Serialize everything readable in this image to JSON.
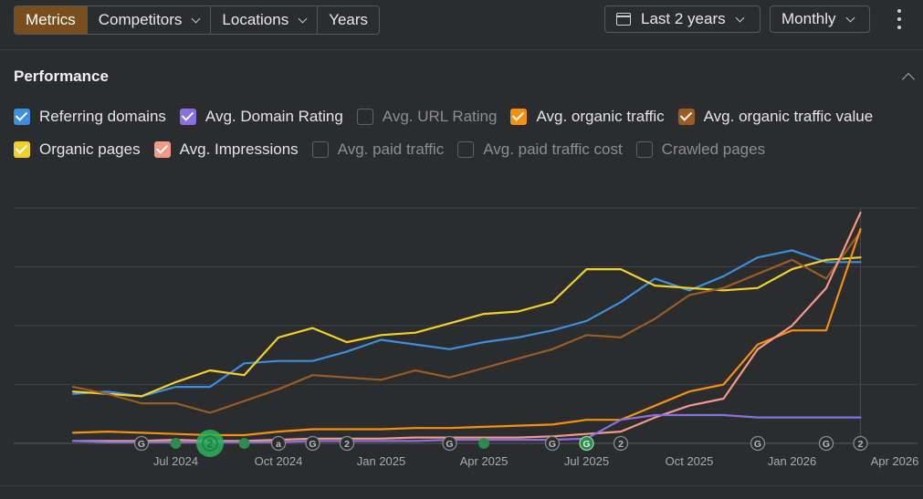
{
  "toolbar": {
    "tabs": [
      {
        "label": "Metrics",
        "active": true,
        "dropdown": false
      },
      {
        "label": "Competitors",
        "active": false,
        "dropdown": true
      },
      {
        "label": "Locations",
        "active": false,
        "dropdown": true
      },
      {
        "label": "Years",
        "active": false,
        "dropdown": false
      }
    ],
    "date_range": "Last 2 years",
    "interval": "Monthly",
    "menu_icon": "kebab-icon",
    "accent": "#7a4d1f"
  },
  "section": {
    "title": "Performance"
  },
  "legend": [
    [
      {
        "label": "Referring domains",
        "checked": true,
        "color": "#3b8fdd"
      },
      {
        "label": "Avg. Domain Rating",
        "checked": true,
        "color": "#8a6fe0"
      },
      {
        "label": "Avg. URL Rating",
        "checked": false,
        "color": ""
      },
      {
        "label": "Avg. organic traffic",
        "checked": true,
        "color": "#f5900f"
      },
      {
        "label": "Avg. organic traffic value",
        "checked": true,
        "color": "#9a5c22"
      }
    ],
    [
      {
        "label": "Organic pages",
        "checked": true,
        "color": "#f3d12a"
      },
      {
        "label": "Avg. Impressions",
        "checked": true,
        "color": "#f39a86"
      },
      {
        "label": "Avg. paid traffic",
        "checked": false,
        "color": ""
      },
      {
        "label": "Avg. paid traffic cost",
        "checked": false,
        "color": ""
      },
      {
        "label": "Crawled pages",
        "checked": false,
        "color": ""
      }
    ]
  ],
  "chart_data": {
    "type": "line",
    "x": [
      "2024-04",
      "2024-05",
      "2024-06",
      "2024-07",
      "2024-08",
      "2024-09",
      "2024-10",
      "2024-11",
      "2024-12",
      "2025-01",
      "2025-02",
      "2025-03",
      "2025-04",
      "2025-05",
      "2025-06",
      "2025-07",
      "2025-08",
      "2025-09",
      "2025-10",
      "2025-11",
      "2025-12",
      "2026-01",
      "2026-02",
      "2026-03",
      "2026-04"
    ],
    "x_tick_labels": [
      "Jul 2024",
      "Oct 2024",
      "Jan 2025",
      "Apr 2025",
      "Jul 2025",
      "Oct 2025",
      "Jan 2026",
      "Apr 2026"
    ],
    "x_tick_months": [
      "2024-07",
      "2024-10",
      "2025-01",
      "2025-04",
      "2025-07",
      "2025-10",
      "2026-01",
      "2026-04"
    ],
    "y_scale": "relative (no y-axis labels shown); values as % of chart height",
    "ylim": [
      0,
      100
    ],
    "grid": "horizontal",
    "series": [
      {
        "name": "Referring domains",
        "color": "#3b8fdd",
        "values": [
          21,
          22,
          20,
          24,
          24,
          34,
          35,
          35,
          39,
          44,
          42,
          40,
          43,
          45,
          48,
          52,
          60,
          70,
          65,
          71,
          79,
          82,
          77,
          77,
          null
        ]
      },
      {
        "name": "Organic pages",
        "color": "#f3d12a",
        "values": [
          22,
          21,
          20,
          26,
          31,
          29,
          45,
          49,
          43,
          46,
          47,
          51,
          55,
          56,
          60,
          74,
          74,
          67,
          66,
          65,
          66,
          74,
          78,
          79,
          null
        ]
      },
      {
        "name": "Avg. organic traffic value",
        "color": "#9a5c22",
        "values": [
          24,
          21,
          17,
          17,
          13,
          18,
          23,
          29,
          28,
          27,
          31,
          28,
          32,
          36,
          40,
          46,
          45,
          53,
          63,
          66,
          72,
          78,
          70,
          90,
          null
        ]
      },
      {
        "name": "Avg. organic traffic",
        "color": "#f5900f",
        "values": [
          4.5,
          5,
          4.5,
          4,
          3.5,
          3.5,
          5,
          6,
          6,
          6,
          6.5,
          6.5,
          7,
          7.5,
          8,
          10,
          10,
          16,
          22,
          25,
          42,
          48,
          48,
          91,
          null
        ]
      },
      {
        "name": "Avg. Impressions",
        "color": "#f39a86",
        "values": [
          1,
          1,
          1,
          1.5,
          1,
          1,
          1.5,
          2,
          2,
          2,
          2.5,
          2.5,
          2.5,
          2.5,
          3,
          4,
          5,
          11,
          16,
          19,
          40,
          50,
          66,
          98,
          null
        ]
      },
      {
        "name": "Avg. Domain Rating",
        "color": "#8a6fe0",
        "values": [
          1,
          0.5,
          0.5,
          0.5,
          0.5,
          0.5,
          0.5,
          1,
          1,
          1,
          1,
          1.5,
          1.5,
          1.5,
          1.5,
          2,
          10,
          12,
          12,
          12,
          11,
          11,
          11,
          11,
          null
        ]
      }
    ],
    "annotations": [
      {
        "month": "2024-06",
        "label": "G",
        "kind": "update"
      },
      {
        "month": "2024-07",
        "label": "",
        "kind": "event"
      },
      {
        "month": "2024-08",
        "label": "2",
        "kind": "event-large"
      },
      {
        "month": "2024-09",
        "label": "",
        "kind": "event"
      },
      {
        "month": "2024-10",
        "label": "a",
        "kind": "update"
      },
      {
        "month": "2024-11",
        "label": "G",
        "kind": "update"
      },
      {
        "month": "2024-12",
        "label": "2",
        "kind": "update"
      },
      {
        "month": "2025-03",
        "label": "G",
        "kind": "update"
      },
      {
        "month": "2025-04",
        "label": "",
        "kind": "event"
      },
      {
        "month": "2025-06",
        "label": "G",
        "kind": "update"
      },
      {
        "month": "2025-07",
        "label": "G",
        "kind": "event-g"
      },
      {
        "month": "2025-08",
        "label": "2",
        "kind": "update"
      },
      {
        "month": "2025-12",
        "label": "G",
        "kind": "update"
      },
      {
        "month": "2026-02",
        "label": "G",
        "kind": "update"
      },
      {
        "month": "2026-03",
        "label": "2",
        "kind": "update"
      }
    ]
  }
}
